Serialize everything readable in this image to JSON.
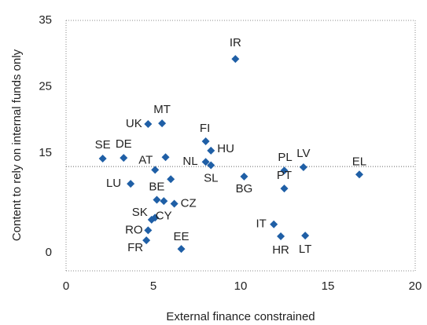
{
  "chart_data": {
    "type": "scatter",
    "x_label": "External finance constrained",
    "y_label": "Content to rely on internal funds only",
    "xlim": [
      0,
      20
    ],
    "xticks": [
      0,
      5,
      10,
      15,
      20
    ],
    "ylim": [
      -2.7,
      35
    ],
    "yticks": [
      0,
      15,
      25,
      35
    ],
    "reference_y": 13,
    "color": "#1f5fa6",
    "labels": [
      "IR",
      "MT",
      "UK",
      "FI",
      "HU",
      "SE",
      "DE",
      null,
      "AT",
      "NL",
      "SL",
      "PL",
      "LV",
      "EL",
      "BG",
      "LU",
      null,
      "PT",
      "BE",
      null,
      "CZ",
      "SK",
      "CY",
      "RO",
      "FR",
      "EE",
      "IT",
      "HR",
      "LT"
    ],
    "x": [
      9.7,
      5.5,
      4.7,
      8.0,
      8.3,
      2.1,
      3.3,
      5.7,
      5.1,
      8.0,
      8.3,
      12.5,
      13.6,
      16.8,
      10.2,
      3.7,
      6.0,
      12.5,
      5.2,
      5.6,
      6.2,
      4.9,
      5.1,
      4.7,
      4.6,
      6.6,
      11.9,
      12.3,
      13.7
    ],
    "y": [
      29.2,
      19.5,
      19.4,
      16.8,
      15.4,
      14.2,
      14.3,
      14.4,
      12.5,
      13.7,
      13.2,
      12.4,
      12.9,
      11.8,
      11.5,
      10.4,
      11.1,
      9.7,
      8.0,
      7.8,
      7.4,
      5.0,
      5.3,
      3.4,
      1.9,
      0.6,
      4.3,
      2.5,
      2.6
    ]
  }
}
